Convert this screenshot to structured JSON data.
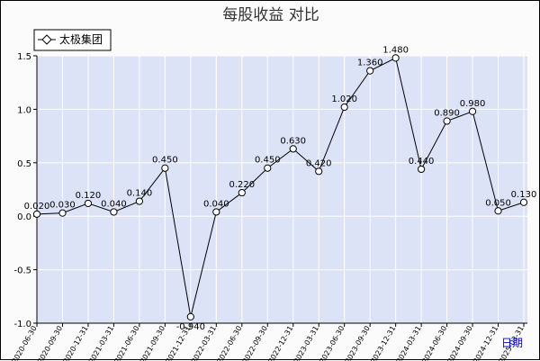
{
  "chart_data": {
    "type": "line",
    "title": "每股收益  对比",
    "xlabel": "日期",
    "ylabel": "",
    "ylim": [
      -1.0,
      1.5
    ],
    "yticks": [
      -1.0,
      -0.5,
      0.0,
      0.5,
      1.0,
      1.5
    ],
    "ytick_labels": [
      "-1.0",
      "-0.5",
      "0.0",
      "0.5",
      "1.0",
      "1.5"
    ],
    "grid": true,
    "legend_position": "top-left",
    "colors": {
      "plot_bg": "#dde3f7",
      "grid": "#ffffff",
      "line": "#000000",
      "marker_fill": "#ffffff"
    },
    "categories": [
      "2020-06-30",
      "2020-09-30",
      "2020-12-31",
      "2021-03-31",
      "2021-06-30",
      "2021-09-30",
      "2021-12-31",
      "2022-03-31",
      "2022-06-30",
      "2022-09-30",
      "2022-12-31",
      "2023-03-31",
      "2023-06-30",
      "2023-09-30",
      "2023-12-31",
      "2024-03-31",
      "2024-06-30",
      "2024-09-30",
      "2024-12-31",
      "2025-03-31"
    ],
    "x_tick_labels": [
      "2020-06-30",
      "2020-09-30",
      "2020-12-31",
      "2021-03-31",
      "2021-06-30",
      "2021-09-30",
      "2021-12-31",
      "2022-03-31",
      "2022-06-30",
      "2022-09-30",
      "2022-12-31",
      "2023-03-31",
      "2023-06-30",
      "2023-09-30",
      "2023-12-31",
      "2024-03-31",
      "2024-06-30",
      "2024-09-30",
      "2024-12-31",
      "2025-03-31"
    ],
    "series": [
      {
        "name": "太极集团",
        "values": [
          0.02,
          0.03,
          0.12,
          0.04,
          0.14,
          0.45,
          -0.94,
          0.04,
          0.22,
          0.45,
          0.63,
          0.42,
          1.02,
          1.36,
          1.48,
          0.44,
          0.89,
          0.98,
          0.05,
          0.13
        ],
        "labels": [
          "0.020",
          "0.030",
          "0.120",
          "0.040",
          "0.140",
          "0.450",
          "-0.940",
          "0.040",
          "0.220",
          "0.450",
          "0.630",
          "0.420",
          "1.020",
          "1.360",
          "1.480",
          "0.440",
          "0.890",
          "0.980",
          "0.050",
          "0.130"
        ]
      }
    ]
  }
}
